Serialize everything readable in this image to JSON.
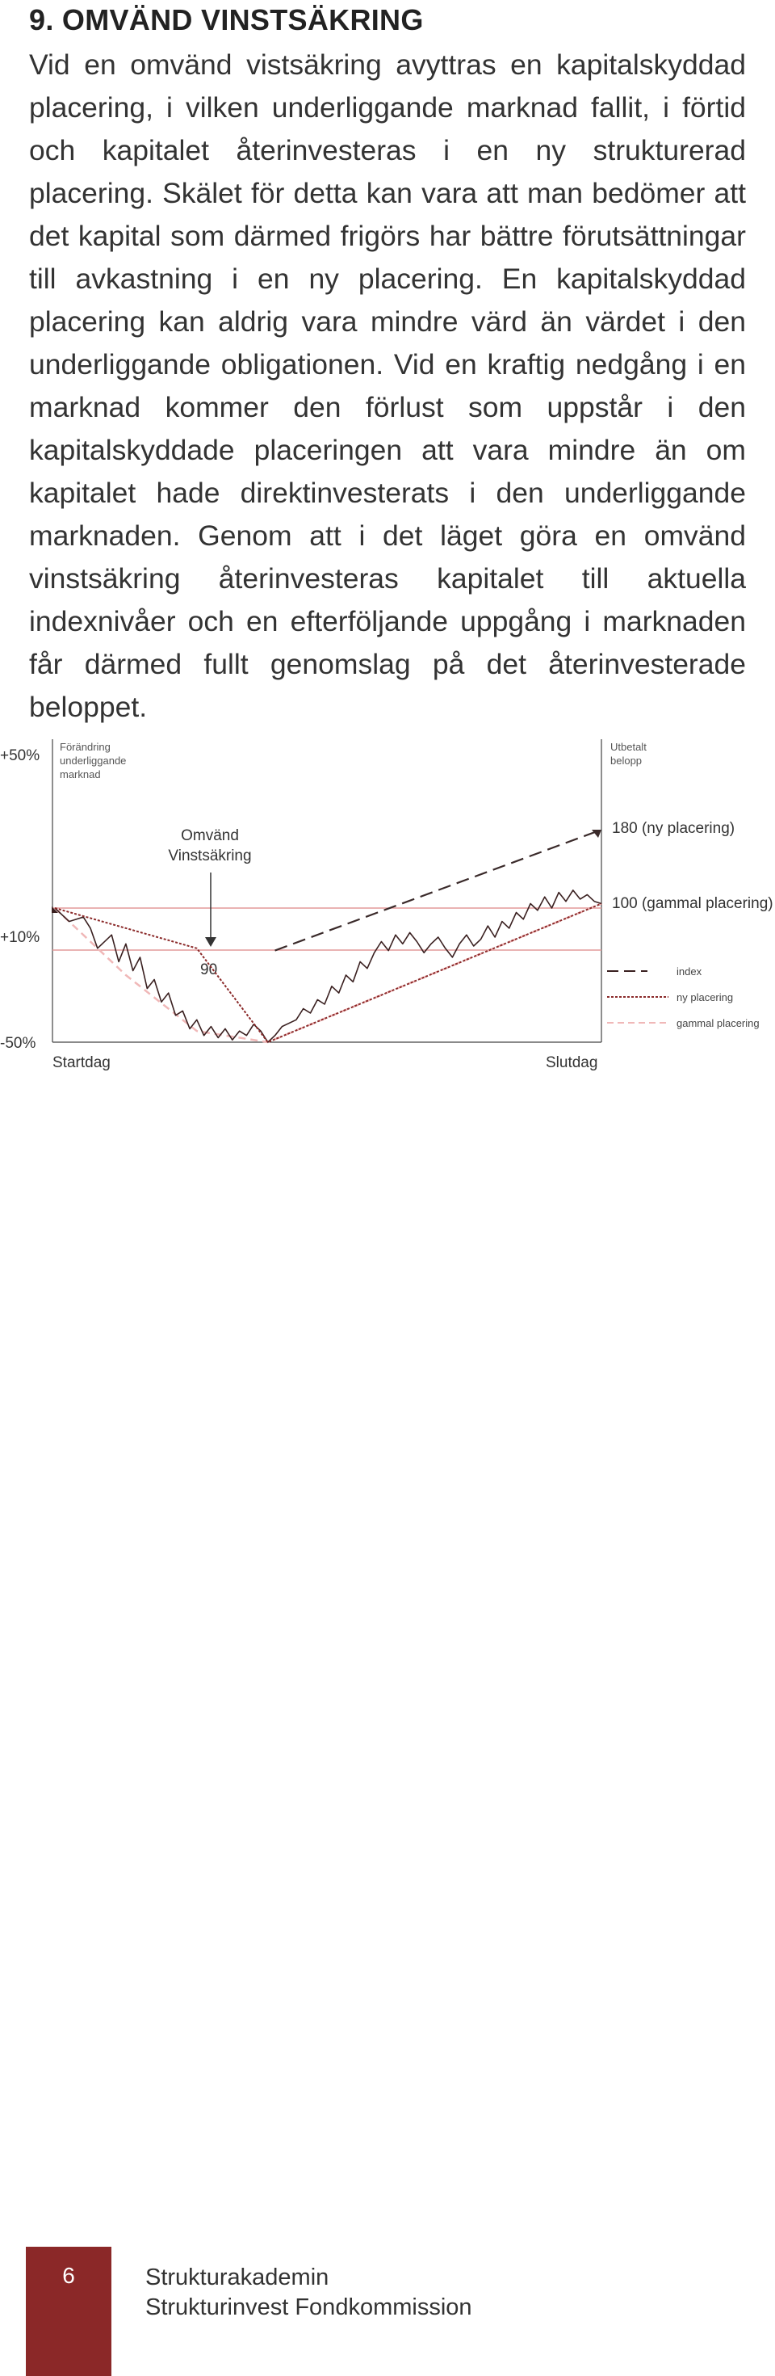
{
  "section": {
    "heading": "9. OMVÄND VINSTSÄKRING",
    "paragraph": "Vid en omvänd vistsäkring avyttras en kapitalskyddad placering, i vilken underliggande marknad fallit, i förtid och kapitalet återinvesteras i en ny strukturerad placering. Skälet för detta kan vara att man bedömer att det kapital som därmed frigörs har bättre förutsättningar till avkastning i en ny placering. En kapitalskyddad placering kan aldrig vara mindre värd än värdet i den underliggande obligationen. Vid en kraftig nedgång i en marknad kommer den förlust som uppstår i den kapitalskyddade placeringen att vara mindre än om kapitalet hade direktinvesterats i den underliggande marknaden. Genom att i det läget göra en omvänd vinstsäkring återinvesteras kapitalet till aktuella indexnivåer och en efterföljande uppgång i marknaden får därmed fullt genomslag på det återinvesterade beloppet."
  },
  "chart_data": {
    "type": "line",
    "y_left_label": "Förändring underliggande marknad",
    "y_right_label": "Utbetalt belopp",
    "y_ticks": [
      "+50%",
      "+10%",
      "-50%"
    ],
    "x_start_label": "Startdag",
    "x_end_label": "Slutdag",
    "annotations": {
      "reverse_lock": "Omvänd Vinstsäkring",
      "value_90": "90",
      "value_180": "180 (ny placering)",
      "value_100": "100 (gammal placering)"
    },
    "legend": [
      "index",
      "ny placering",
      "gammal placering"
    ],
    "colors": {
      "index": "#3a2020",
      "ny_placering": "#8b2a2a",
      "gammal_placering": "#f0b8b8",
      "reference_lines": "#e39a9a",
      "new_placement_dash": "#3a2a2a"
    },
    "index_series": [
      [
        0,
        10
      ],
      [
        2,
        4
      ],
      [
        4,
        6
      ],
      [
        5,
        1
      ],
      [
        6,
        -8
      ],
      [
        8,
        -2
      ],
      [
        9,
        -14
      ],
      [
        10,
        -6
      ],
      [
        11,
        -18
      ],
      [
        12,
        -12
      ],
      [
        13,
        -26
      ],
      [
        14,
        -22
      ],
      [
        15,
        -32
      ],
      [
        16,
        -28
      ],
      [
        17,
        -38
      ],
      [
        18,
        -36
      ],
      [
        19,
        -44
      ],
      [
        20,
        -40
      ],
      [
        21,
        -47
      ],
      [
        22,
        -43
      ],
      [
        23,
        -48
      ],
      [
        24,
        -44
      ],
      [
        25,
        -49
      ],
      [
        26,
        -45
      ],
      [
        27,
        -47
      ],
      [
        28,
        -42
      ],
      [
        29,
        -45
      ],
      [
        30,
        -50
      ],
      [
        31,
        -47
      ],
      [
        32,
        -43
      ],
      [
        34,
        -40
      ],
      [
        35,
        -35
      ],
      [
        36,
        -37
      ],
      [
        37,
        -31
      ],
      [
        38,
        -33
      ],
      [
        39,
        -25
      ],
      [
        40,
        -28
      ],
      [
        41,
        -20
      ],
      [
        42,
        -23
      ],
      [
        43,
        -14
      ],
      [
        44,
        -17
      ],
      [
        45,
        -10
      ],
      [
        46,
        -5
      ],
      [
        47,
        -9
      ],
      [
        48,
        -2
      ],
      [
        49,
        -6
      ],
      [
        50,
        -1
      ],
      [
        51,
        -5
      ],
      [
        52,
        -10
      ],
      [
        53,
        -6
      ],
      [
        54,
        -3
      ],
      [
        55,
        -8
      ],
      [
        56,
        -12
      ],
      [
        57,
        -6
      ],
      [
        58,
        -2
      ],
      [
        59,
        -7
      ],
      [
        60,
        -4
      ],
      [
        61,
        2
      ],
      [
        62,
        -3
      ],
      [
        63,
        4
      ],
      [
        64,
        1
      ],
      [
        65,
        8
      ],
      [
        66,
        5
      ],
      [
        67,
        12
      ],
      [
        68,
        9
      ],
      [
        69,
        15
      ],
      [
        70,
        10
      ],
      [
        71,
        17
      ],
      [
        72,
        13
      ],
      [
        73,
        18
      ],
      [
        74,
        14
      ],
      [
        75,
        16
      ],
      [
        76,
        13
      ],
      [
        77,
        12
      ]
    ],
    "gammal_placering_series": [
      [
        0,
        10
      ],
      [
        10,
        -20
      ],
      [
        20,
        -45
      ],
      [
        30,
        -50
      ],
      [
        77,
        12
      ]
    ],
    "ny_placering_series": [
      [
        0,
        10
      ],
      [
        20,
        -8
      ],
      [
        30,
        -50
      ],
      [
        77,
        12
      ]
    ],
    "new_placement_dashed": [
      [
        31,
        -9
      ],
      [
        77,
        38
      ]
    ],
    "x_range": [
      0,
      77
    ],
    "y_range": [
      -50,
      50
    ]
  },
  "footer": {
    "page_number": "6",
    "line1": "Strukturakademin",
    "line2": "Strukturinvest Fondkommission"
  }
}
